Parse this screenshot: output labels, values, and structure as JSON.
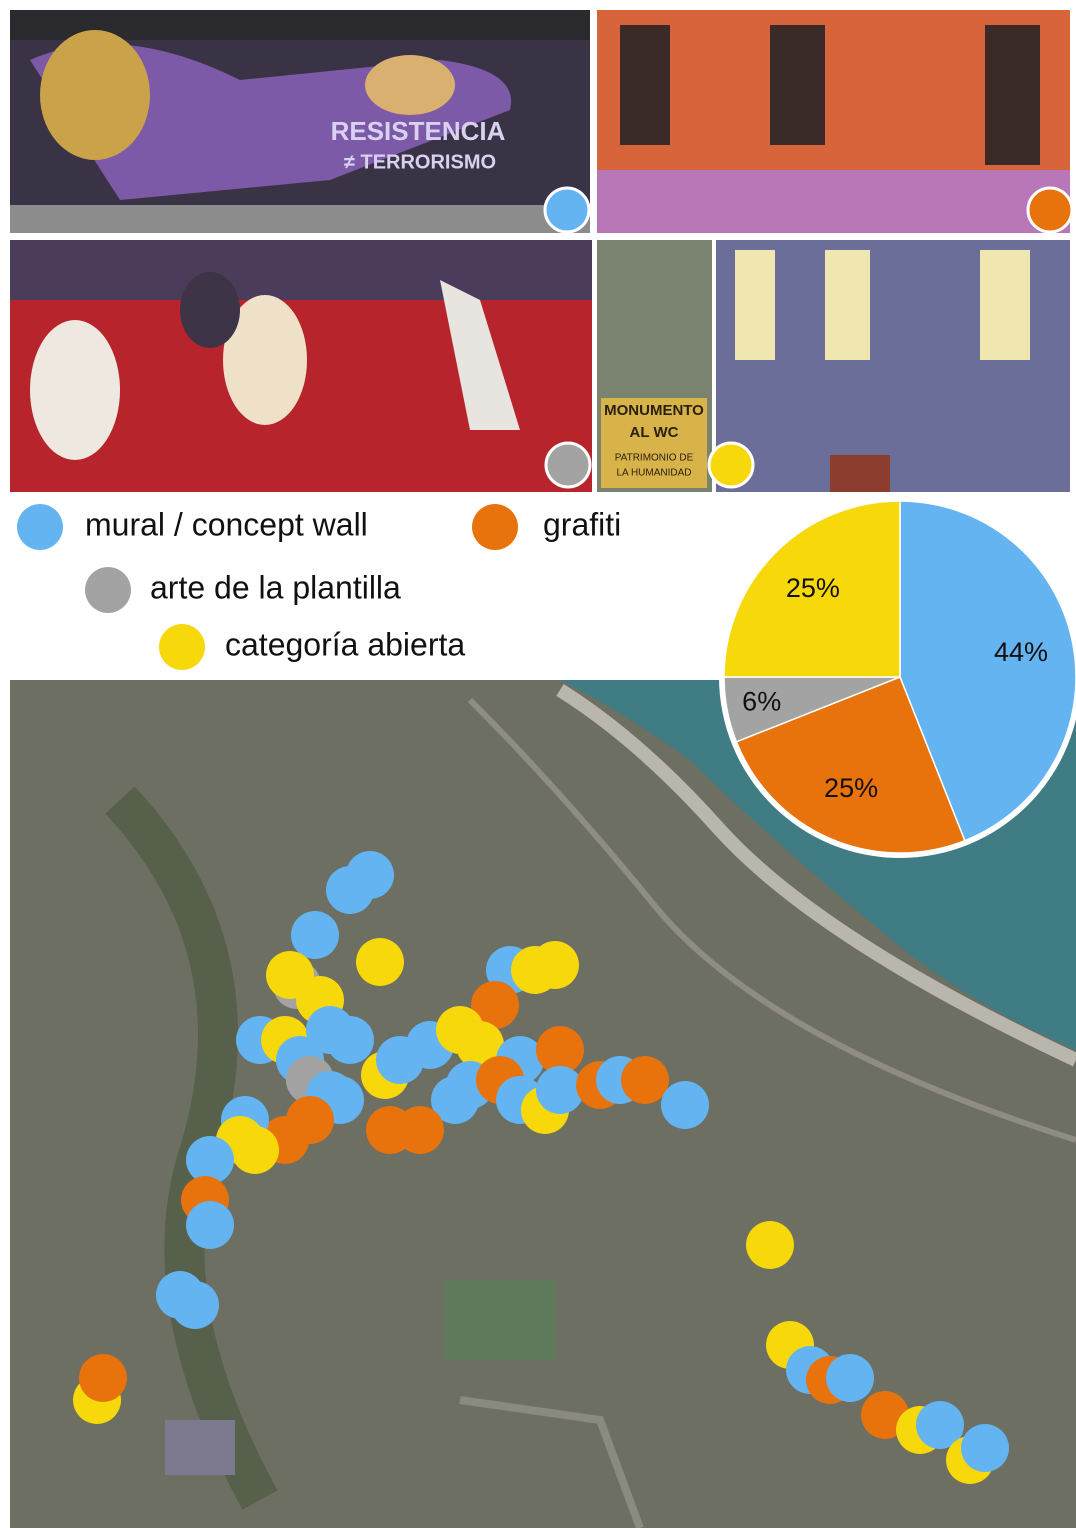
{
  "chart_data": {
    "type": "pie",
    "categories": [
      "mural / concept wall",
      "grafiti",
      "arte de la plantilla",
      "categoría abierta"
    ],
    "values": [
      44,
      25,
      6,
      25
    ],
    "value_labels": [
      "44%",
      "25%",
      "6%",
      "25%"
    ],
    "colors": [
      "#64b4f2",
      "#e8720c",
      "#a3a3a3",
      "#f6d80b"
    ]
  },
  "photos": {
    "texts": [
      "RESISTENCIA",
      "≠ TERRORISMO",
      "MONUMENTO",
      "AL WC",
      "PATRIMONIO DE",
      "LA HUMANIDAD"
    ]
  }
}
